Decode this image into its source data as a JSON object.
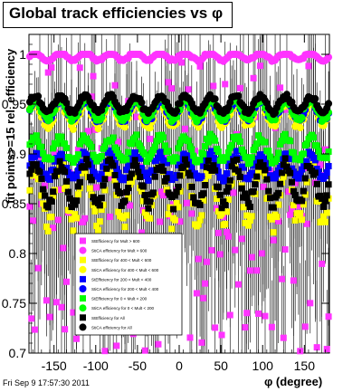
{
  "title": "Global track efficiencies vs φ",
  "footer": "Fri Sep  9 17:57:30 2011",
  "chart_data": {
    "type": "scatter",
    "title": "Global track efficiencies vs φ",
    "xlabel": "φ (degree)",
    "ylabel": "fit points>=15 rel. efficiency",
    "xlim": [
      -180,
      180
    ],
    "ylim": [
      0.7,
      1.02
    ],
    "xticks": [
      -150,
      -100,
      -50,
      0,
      50,
      100,
      150
    ],
    "xtick_labels": [
      "-150",
      "-100",
      "-50",
      "0",
      "50",
      "100",
      "150"
    ],
    "yticks": [
      0.7,
      0.75,
      0.8,
      0.85,
      0.9,
      0.95,
      1.0
    ],
    "ytick_labels": [
      "0.7",
      "0.75",
      "0.8",
      "0.85",
      "0.9",
      "0.95",
      "1"
    ],
    "legend_position": "bottom-left",
    "series": [
      {
        "name": "StEfficiency  for Mult > 600",
        "color": "#ff33ff",
        "marker": "square",
        "band": [
          0.7,
          1.0
        ],
        "mean": 0.93,
        "amp": 0.1
      },
      {
        "name": "StiCA efficiency  for Mult > 600",
        "color": "#ff33ff",
        "marker": "circle",
        "band": [
          0.99,
          1.0
        ],
        "mean": 0.998,
        "amp": 0.004
      },
      {
        "name": "StEfficiency  for 400 < Mult < 600",
        "color": "#ffff00",
        "marker": "square",
        "band": [
          0.82,
          0.96
        ],
        "mean": 0.86,
        "amp": 0.03
      },
      {
        "name": "StiCA efficiency  for 400 < Mult < 600",
        "color": "#ffff00",
        "marker": "circle",
        "band": [
          0.92,
          0.96
        ],
        "mean": 0.94,
        "amp": 0.012
      },
      {
        "name": "StEfficiency  for 200 < Mult < 400",
        "color": "#0000ff",
        "marker": "square",
        "band": [
          0.87,
          0.91
        ],
        "mean": 0.888,
        "amp": 0.012
      },
      {
        "name": "StiCA efficiency  for 200 < Mult < 400",
        "color": "#0000ff",
        "marker": "circle",
        "band": [
          0.93,
          0.96
        ],
        "mean": 0.944,
        "amp": 0.01
      },
      {
        "name": "StEfficiency  for 0 < Mult < 200",
        "color": "#00ff00",
        "marker": "square",
        "band": [
          0.89,
          0.93
        ],
        "mean": 0.905,
        "amp": 0.012
      },
      {
        "name": "StiCA efficiency  for 0 < Mult < 200",
        "color": "#00ff00",
        "marker": "circle",
        "band": [
          0.93,
          0.96
        ],
        "mean": 0.945,
        "amp": 0.01
      },
      {
        "name": "StEfficiency  for All",
        "color": "#000000",
        "marker": "square",
        "band": [
          0.83,
          0.9
        ],
        "mean": 0.87,
        "amp": 0.02
      },
      {
        "name": "StiCA efficiency  for All",
        "color": "#000000",
        "marker": "circle",
        "band": [
          0.94,
          0.96
        ],
        "mean": 0.95,
        "amp": 0.008
      }
    ]
  }
}
